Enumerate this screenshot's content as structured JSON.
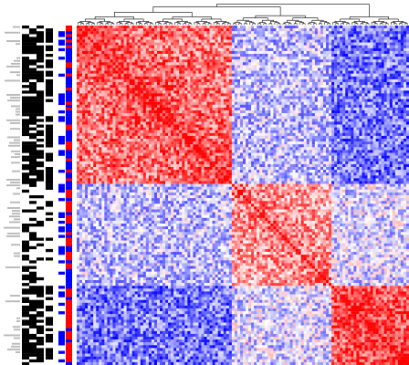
{
  "chart_data": {
    "type": "heatmap",
    "title": "",
    "xlabel": "",
    "ylabel": "",
    "layout_type": "clustered correlation matrix with top dendrogram and left annotation tracks",
    "matrix_size": 120,
    "clusters": [
      {
        "id": "A",
        "start": 0,
        "end": 56,
        "within_corr": 0.55,
        "color_hint": "red"
      },
      {
        "id": "B",
        "start": 56,
        "end": 92,
        "within_corr": 0.35,
        "color_hint": "red"
      },
      {
        "id": "C",
        "start": 92,
        "end": 120,
        "within_corr": 0.6,
        "color_hint": "red"
      }
    ],
    "between_cluster_corr": [
      {
        "a": "A",
        "b": "B",
        "corr": -0.25
      },
      {
        "a": "A",
        "b": "C",
        "corr": -0.55
      },
      {
        "a": "B",
        "b": "C",
        "corr": -0.15
      }
    ],
    "diagonal_corr": 1.0,
    "color_scale": {
      "min": -1,
      "mid": 0,
      "max": 1,
      "min_color": "#0000ff",
      "mid_color": "#ffffff",
      "max_color": "#ff0000"
    },
    "annotation_tracks": [
      {
        "name": "",
        "type": "binary",
        "colors": [
          "#000000",
          "#ffffff"
        ],
        "count": 4
      },
      {
        "name": "",
        "type": "binary",
        "colors": [
          "#0000ff",
          "#ffffff"
        ]
      },
      {
        "name": "",
        "type": "binary",
        "colors": [
          "#ff0000",
          "#0000ff"
        ]
      }
    ],
    "grid": false,
    "legend": "none"
  }
}
